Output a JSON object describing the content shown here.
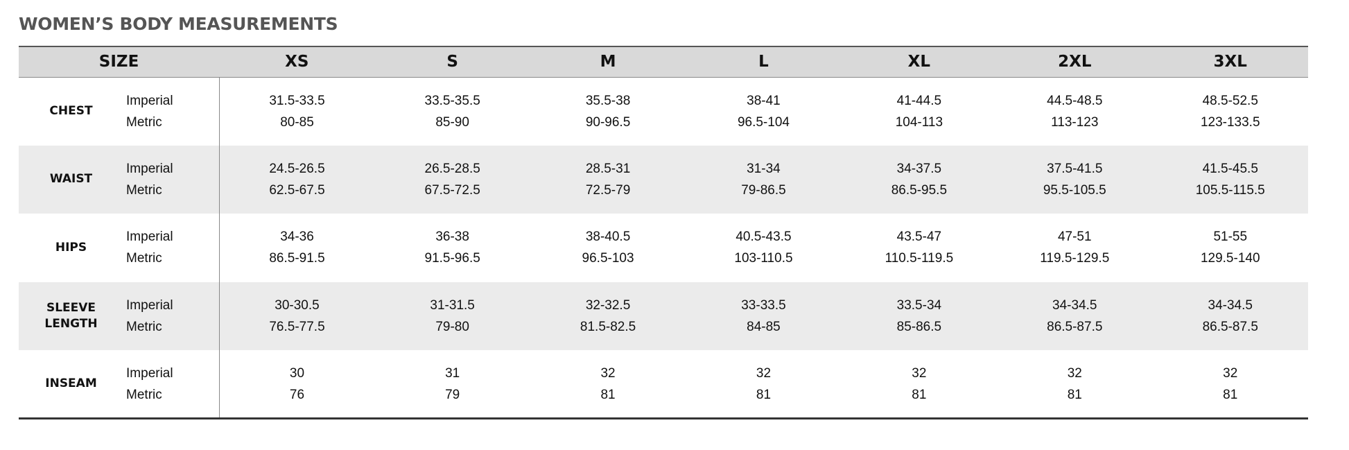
{
  "title": "WOMEN’S BODY MEASUREMENTS",
  "header": {
    "size_label": "SIZE",
    "sizes": [
      "XS",
      "S",
      "M",
      "L",
      "XL",
      "2XL",
      "3XL"
    ]
  },
  "systems": {
    "imperial": "Imperial",
    "metric": "Metric"
  },
  "rows": [
    {
      "category": [
        "CHEST"
      ],
      "imperial": [
        "31.5-33.5",
        "33.5-35.5",
        "35.5-38",
        "38-41",
        "41-44.5",
        "44.5-48.5",
        "48.5-52.5"
      ],
      "metric": [
        "80-85",
        "85-90",
        "90-96.5",
        "96.5-104",
        "104-113",
        "113-123",
        "123-133.5"
      ]
    },
    {
      "category": [
        "WAIST"
      ],
      "imperial": [
        "24.5-26.5",
        "26.5-28.5",
        "28.5-31",
        "31-34",
        "34-37.5",
        "37.5-41.5",
        "41.5-45.5"
      ],
      "metric": [
        "62.5-67.5",
        "67.5-72.5",
        "72.5-79",
        "79-86.5",
        "86.5-95.5",
        "95.5-105.5",
        "105.5-115.5"
      ]
    },
    {
      "category": [
        "HIPS"
      ],
      "imperial": [
        "34-36",
        "36-38",
        "38-40.5",
        "40.5-43.5",
        "43.5-47",
        "47-51",
        "51-55"
      ],
      "metric": [
        "86.5-91.5",
        "91.5-96.5",
        "96.5-103",
        "103-110.5",
        "110.5-119.5",
        "119.5-129.5",
        "129.5-140"
      ]
    },
    {
      "category": [
        "SLEEVE",
        "LENGTH"
      ],
      "imperial": [
        "30-30.5",
        "31-31.5",
        "32-32.5",
        "33-33.5",
        "33.5-34",
        "34-34.5",
        "34-34.5"
      ],
      "metric": [
        "76.5-77.5",
        "79-80",
        "81.5-82.5",
        "84-85",
        "85-86.5",
        "86.5-87.5",
        "86.5-87.5"
      ]
    },
    {
      "category": [
        "INSEAM"
      ],
      "imperial": [
        "30",
        "31",
        "32",
        "32",
        "32",
        "32",
        "32"
      ],
      "metric": [
        "76",
        "79",
        "81",
        "81",
        "81",
        "81",
        "81"
      ]
    }
  ]
}
